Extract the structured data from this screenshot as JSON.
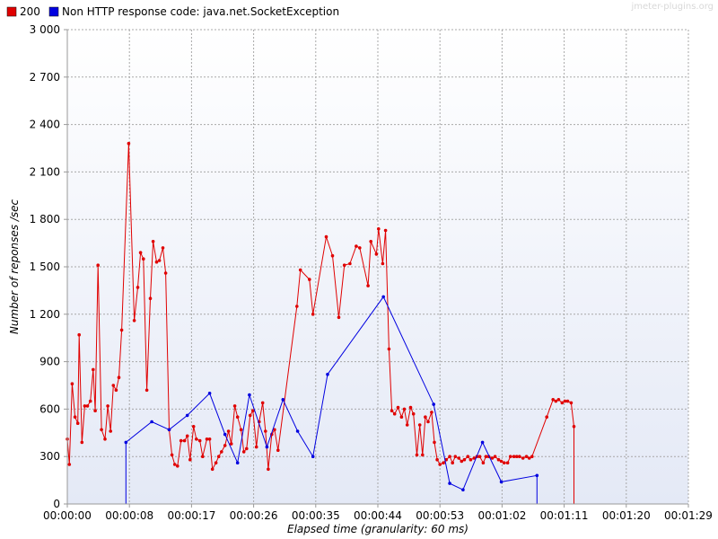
{
  "chart_data": {
    "type": "line",
    "watermark": "jmeter-plugins.org",
    "xlabel": "Elapsed time (granularity: 60 ms)",
    "ylabel": "Number of reponses /sec",
    "x_ticks": [
      "00:00:00",
      "00:00:08",
      "00:00:17",
      "00:00:26",
      "00:00:35",
      "00:00:44",
      "00:00:53",
      "00:01:02",
      "00:01:11",
      "00:01:20",
      "00:01:29"
    ],
    "x_tick_seconds": [
      0,
      8.9,
      17.8,
      26.7,
      35.6,
      44.5,
      53.4,
      62.3,
      71.2,
      80.1,
      89
    ],
    "y_ticks": [
      "0",
      "300",
      "600",
      "900",
      "1 200",
      "1 500",
      "1 800",
      "2 100",
      "2 400",
      "2 700",
      "3 000"
    ],
    "y_tick_values": [
      0,
      300,
      600,
      900,
      1200,
      1500,
      1800,
      2100,
      2400,
      2700,
      3000
    ],
    "xlim": [
      0,
      89
    ],
    "ylim": [
      0,
      3000
    ],
    "grid": true,
    "legend_position": "top-left",
    "series": [
      {
        "name": "200",
        "color": "#e00000",
        "points": [
          [
            0.0,
            0
          ],
          [
            0.0,
            410
          ],
          [
            0.3,
            250
          ],
          [
            0.7,
            760
          ],
          [
            1.1,
            550
          ],
          [
            1.5,
            510
          ],
          [
            1.7,
            1070
          ],
          [
            2.1,
            390
          ],
          [
            2.5,
            620
          ],
          [
            2.9,
            620
          ],
          [
            3.3,
            650
          ],
          [
            3.7,
            850
          ],
          [
            4.0,
            590
          ],
          [
            4.4,
            1510
          ],
          [
            4.9,
            470
          ],
          [
            5.4,
            410
          ],
          [
            5.8,
            620
          ],
          [
            6.2,
            460
          ],
          [
            6.6,
            750
          ],
          [
            7.0,
            720
          ],
          [
            7.4,
            800
          ],
          [
            7.8,
            1100
          ],
          [
            8.8,
            2280
          ],
          [
            9.6,
            1160
          ],
          [
            10.1,
            1370
          ],
          [
            10.5,
            1590
          ],
          [
            10.9,
            1550
          ],
          [
            11.4,
            720
          ],
          [
            11.9,
            1300
          ],
          [
            12.3,
            1660
          ],
          [
            12.8,
            1530
          ],
          [
            13.2,
            1540
          ],
          [
            13.7,
            1620
          ],
          [
            14.1,
            1460
          ],
          [
            14.6,
            470
          ],
          [
            15.0,
            310
          ],
          [
            15.4,
            250
          ],
          [
            15.8,
            240
          ],
          [
            16.3,
            400
          ],
          [
            16.8,
            400
          ],
          [
            17.2,
            430
          ],
          [
            17.6,
            280
          ],
          [
            18.1,
            490
          ],
          [
            18.5,
            410
          ],
          [
            19.0,
            400
          ],
          [
            19.4,
            300
          ],
          [
            20.0,
            410
          ],
          [
            20.4,
            410
          ],
          [
            20.8,
            220
          ],
          [
            21.3,
            260
          ],
          [
            21.7,
            300
          ],
          [
            22.1,
            330
          ],
          [
            22.6,
            370
          ],
          [
            23.1,
            460
          ],
          [
            23.5,
            380
          ],
          [
            24.0,
            620
          ],
          [
            24.4,
            550
          ],
          [
            24.9,
            470
          ],
          [
            25.3,
            330
          ],
          [
            25.7,
            350
          ],
          [
            26.2,
            560
          ],
          [
            26.6,
            590
          ],
          [
            27.1,
            360
          ],
          [
            27.5,
            520
          ],
          [
            28.0,
            640
          ],
          [
            28.4,
            460
          ],
          [
            28.8,
            220
          ],
          [
            29.3,
            440
          ],
          [
            29.7,
            470
          ],
          [
            30.2,
            340
          ],
          [
            32.9,
            1250
          ],
          [
            33.4,
            1480
          ],
          [
            34.7,
            1420
          ],
          [
            35.2,
            1200
          ],
          [
            37.1,
            1690
          ],
          [
            38.0,
            1570
          ],
          [
            38.9,
            1180
          ],
          [
            39.7,
            1510
          ],
          [
            40.5,
            1520
          ],
          [
            41.4,
            1630
          ],
          [
            41.9,
            1620
          ],
          [
            43.1,
            1380
          ],
          [
            43.5,
            1660
          ],
          [
            44.3,
            1580
          ],
          [
            44.6,
            1740
          ],
          [
            45.2,
            1520
          ],
          [
            45.6,
            1730
          ],
          [
            46.1,
            980
          ],
          [
            46.5,
            590
          ],
          [
            46.9,
            570
          ],
          [
            47.4,
            610
          ],
          [
            47.9,
            550
          ],
          [
            48.3,
            600
          ],
          [
            48.7,
            500
          ],
          [
            49.2,
            610
          ],
          [
            49.6,
            570
          ],
          [
            50.1,
            310
          ],
          [
            50.5,
            500
          ],
          [
            50.9,
            310
          ],
          [
            51.3,
            550
          ],
          [
            51.7,
            520
          ],
          [
            52.2,
            580
          ],
          [
            52.6,
            390
          ],
          [
            53.0,
            280
          ],
          [
            53.4,
            250
          ],
          [
            53.9,
            260
          ],
          [
            54.3,
            280
          ],
          [
            54.8,
            300
          ],
          [
            55.2,
            260
          ],
          [
            55.6,
            300
          ],
          [
            56.1,
            290
          ],
          [
            56.5,
            270
          ],
          [
            56.9,
            280
          ],
          [
            57.4,
            300
          ],
          [
            57.8,
            280
          ],
          [
            58.3,
            290
          ],
          [
            58.7,
            300
          ],
          [
            59.1,
            300
          ],
          [
            59.6,
            260
          ],
          [
            60.0,
            300
          ],
          [
            60.4,
            300
          ],
          [
            60.9,
            290
          ],
          [
            61.3,
            300
          ],
          [
            61.8,
            280
          ],
          [
            62.2,
            270
          ],
          [
            62.6,
            260
          ],
          [
            63.1,
            260
          ],
          [
            63.5,
            300
          ],
          [
            64.0,
            300
          ],
          [
            64.4,
            300
          ],
          [
            64.8,
            300
          ],
          [
            65.3,
            290
          ],
          [
            65.8,
            300
          ],
          [
            66.2,
            290
          ],
          [
            66.6,
            300
          ],
          [
            68.7,
            550
          ],
          [
            69.6,
            660
          ],
          [
            70.0,
            650
          ],
          [
            70.4,
            660
          ],
          [
            70.9,
            640
          ],
          [
            71.3,
            650
          ],
          [
            71.7,
            650
          ],
          [
            72.2,
            640
          ],
          [
            72.6,
            490
          ],
          [
            72.6,
            0
          ]
        ]
      },
      {
        "name": "Non HTTP response code: java.net.SocketException",
        "color": "#0000e0",
        "points": [
          [
            8.4,
            0
          ],
          [
            8.4,
            390
          ],
          [
            12.1,
            520
          ],
          [
            14.6,
            470
          ],
          [
            17.2,
            560
          ],
          [
            20.4,
            700
          ],
          [
            22.6,
            440
          ],
          [
            24.4,
            260
          ],
          [
            26.1,
            690
          ],
          [
            28.6,
            360
          ],
          [
            30.9,
            660
          ],
          [
            33.0,
            460
          ],
          [
            35.2,
            300
          ],
          [
            37.3,
            820
          ],
          [
            45.3,
            1310
          ],
          [
            52.5,
            630
          ],
          [
            54.8,
            130
          ],
          [
            56.7,
            90
          ],
          [
            59.5,
            390
          ],
          [
            62.2,
            140
          ],
          [
            67.3,
            180
          ],
          [
            67.3,
            0
          ]
        ]
      }
    ]
  }
}
